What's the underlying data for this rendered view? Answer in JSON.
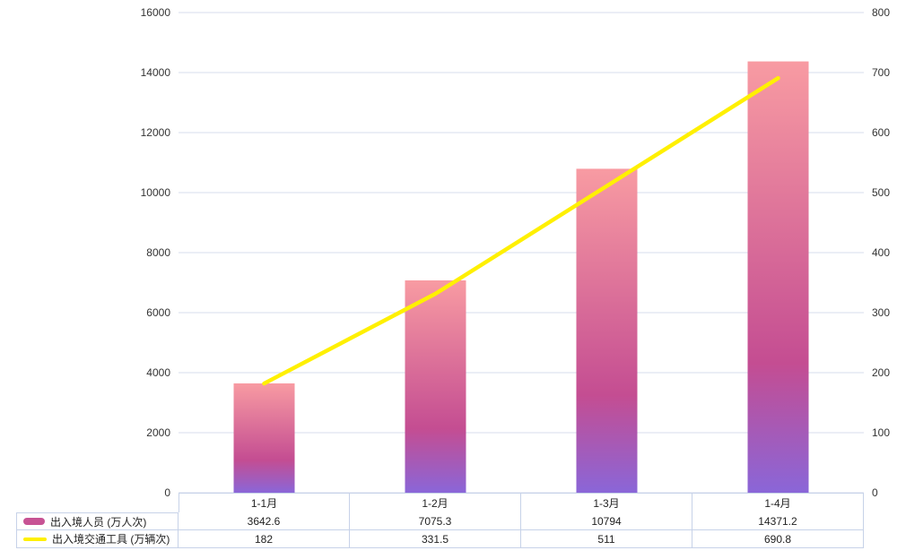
{
  "chart_data": {
    "type": "bar",
    "subtype": "combo-bar-line-with-table",
    "title": "",
    "categories": [
      "1-1月",
      "1-2月",
      "1-3月",
      "1-4月"
    ],
    "series": [
      {
        "name": "出入境人员 (万人次)",
        "type": "bar",
        "axis": "left",
        "values": [
          3642.6,
          7075.3,
          10794,
          14371.2
        ]
      },
      {
        "name": "出入境交通工具 (万辆次)",
        "type": "line",
        "axis": "right",
        "values": [
          182,
          331.5,
          511,
          690.8
        ]
      }
    ],
    "xlabel": "",
    "ylabel_left": "",
    "ylabel_right": "",
    "y_left": {
      "min": 0,
      "max": 16000,
      "step": 2000,
      "ticks": [
        "0",
        "2000",
        "4000",
        "6000",
        "8000",
        "10000",
        "12000",
        "14000",
        "16000"
      ]
    },
    "y_right": {
      "min": 0,
      "max": 800,
      "step": 100,
      "ticks": [
        "0",
        "100",
        "200",
        "300",
        "400",
        "500",
        "600",
        "700",
        "800"
      ]
    },
    "grid": true,
    "legend_position": "table-left",
    "colors": {
      "bar_gradient_top": "#f89ba2",
      "bar_gradient_mid": "#c44d92",
      "bar_gradient_bottom": "#8a66d8",
      "bar_swatch": "#c75394",
      "line": "#fff000",
      "grid_line": "#d7dcec",
      "table_border": "#c7d2e8",
      "text": "#333333"
    }
  }
}
